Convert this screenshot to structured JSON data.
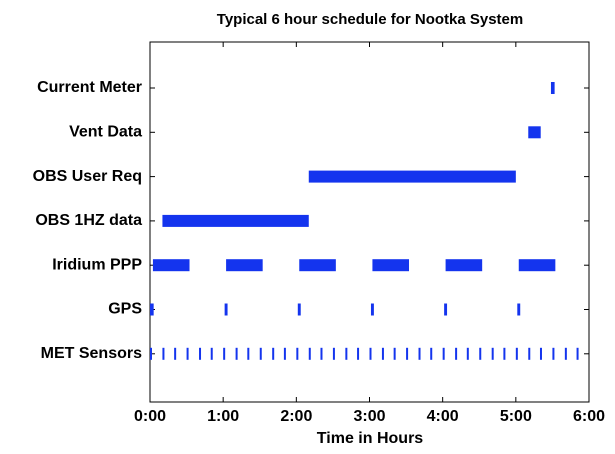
{
  "chart_data": {
    "type": "gantt",
    "title": "Typical 6 hour schedule for Nootka System",
    "x_label": "Time in Hours",
    "color": "#1434ee",
    "xlim": [
      0,
      6
    ],
    "xticks": [
      {
        "value": 0,
        "label": "0:00"
      },
      {
        "value": 1,
        "label": "1:00"
      },
      {
        "value": 2,
        "label": "2:00"
      },
      {
        "value": 3,
        "label": "3:00"
      },
      {
        "value": 4,
        "label": "4:00"
      },
      {
        "value": 5,
        "label": "5:00"
      },
      {
        "value": 6,
        "label": "6:00"
      }
    ],
    "rows": [
      {
        "name": "Current Meter",
        "bars": [
          [
            5.48,
            5.53
          ]
        ]
      },
      {
        "name": "Vent Data",
        "bars": [
          [
            5.17,
            5.34
          ]
        ]
      },
      {
        "name": "OBS User Req",
        "bars": [
          [
            2.17,
            5.0
          ]
        ]
      },
      {
        "name": "OBS 1HZ data",
        "bars": [
          [
            0.17,
            2.17
          ]
        ]
      },
      {
        "name": "Iridium PPP",
        "bars": [
          [
            0.04,
            0.54
          ],
          [
            1.04,
            1.54
          ],
          [
            2.04,
            2.54
          ],
          [
            3.04,
            3.54
          ],
          [
            4.04,
            4.54
          ],
          [
            5.04,
            5.54
          ]
        ]
      },
      {
        "name": "GPS",
        "bars": [
          [
            0.0,
            0.05
          ],
          [
            1.02,
            1.06
          ],
          [
            2.02,
            2.06
          ],
          [
            3.02,
            3.06
          ],
          [
            4.02,
            4.06
          ],
          [
            5.02,
            5.06
          ]
        ]
      },
      {
        "name": "MET Sensors",
        "events": [
          0.0,
          0.17,
          0.33,
          0.5,
          0.67,
          0.83,
          1.0,
          1.17,
          1.33,
          1.5,
          1.67,
          1.83,
          2.0,
          2.17,
          2.33,
          2.5,
          2.67,
          2.83,
          3.0,
          3.17,
          3.33,
          3.5,
          3.67,
          3.83,
          4.0,
          4.17,
          4.33,
          4.5,
          4.67,
          4.83,
          5.0,
          5.17,
          5.33,
          5.5,
          5.67,
          5.83
        ]
      }
    ]
  }
}
